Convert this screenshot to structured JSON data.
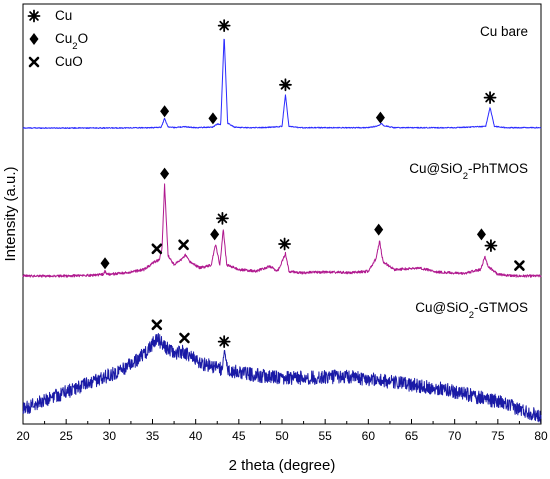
{
  "chart_data": {
    "type": "line",
    "title": "",
    "xlabel": "2 theta (degree)",
    "ylabel": "Intensity (a.u.)",
    "xlim": [
      20,
      80
    ],
    "xticks": [
      20,
      25,
      30,
      35,
      40,
      45,
      50,
      55,
      60,
      65,
      70,
      75,
      80
    ],
    "yticks_shown": false,
    "grid": false,
    "legend": {
      "placement": "top-left",
      "items": [
        {
          "symbol": "asterisk",
          "label_parts": [
            [
              "Cu",
              ""
            ]
          ]
        },
        {
          "symbol": "diamond",
          "label_parts": [
            [
              "Cu",
              ""
            ],
            [
              "2",
              "sub"
            ],
            [
              "O",
              ""
            ]
          ]
        },
        {
          "symbol": "cross",
          "label_parts": [
            [
              "CuO",
              ""
            ]
          ]
        }
      ]
    },
    "series": [
      {
        "name": "Cu bare",
        "label_parts": [
          [
            "Cu bare",
            ""
          ]
        ],
        "color": "#2b2bff",
        "baseline": 0.9,
        "noise": 0.03,
        "points": [
          [
            20,
            0.9
          ],
          [
            25,
            0.9
          ],
          [
            30,
            0.9
          ],
          [
            35,
            0.92
          ],
          [
            36,
            0.95
          ],
          [
            36.4,
            1.5
          ],
          [
            36.8,
            0.97
          ],
          [
            37.5,
            0.93
          ],
          [
            38.8,
            0.98
          ],
          [
            40,
            0.92
          ],
          [
            42,
            0.96
          ],
          [
            42.5,
            1.15
          ],
          [
            42.9,
            1.1
          ],
          [
            43.3,
            6.7
          ],
          [
            43.7,
            1.2
          ],
          [
            44.5,
            0.95
          ],
          [
            46,
            0.92
          ],
          [
            48,
            0.93
          ],
          [
            50,
            1.0
          ],
          [
            50.4,
            3.0
          ],
          [
            50.8,
            1.0
          ],
          [
            52,
            0.92
          ],
          [
            55,
            0.92
          ],
          [
            60,
            0.92
          ],
          [
            61.2,
            1.05
          ],
          [
            61.5,
            1.2
          ],
          [
            61.8,
            1.05
          ],
          [
            63,
            0.92
          ],
          [
            70,
            0.92
          ],
          [
            73.6,
            1.0
          ],
          [
            74.1,
            2.2
          ],
          [
            74.6,
            1.0
          ],
          [
            76,
            0.92
          ],
          [
            80,
            0.92
          ]
        ],
        "markers": [
          {
            "symbol": "diamond",
            "x": 36.4,
            "y": 1.95
          },
          {
            "symbol": "diamond",
            "x": 42.0,
            "y": 1.5
          },
          {
            "symbol": "asterisk",
            "x": 43.3,
            "y": 7.3
          },
          {
            "symbol": "asterisk",
            "x": 50.4,
            "y": 3.6
          },
          {
            "symbol": "diamond",
            "x": 61.4,
            "y": 1.55
          },
          {
            "symbol": "asterisk",
            "x": 74.1,
            "y": 2.8
          }
        ]
      },
      {
        "name": "Cu@SiO2-PhTMOS",
        "label_parts": [
          [
            "Cu@SiO",
            ""
          ],
          [
            "2",
            "sub"
          ],
          [
            "-PhTMOS",
            ""
          ]
        ],
        "color": "#b0198f",
        "baseline": 0.3,
        "noise": 0.08,
        "points": [
          [
            20,
            0.3
          ],
          [
            25,
            0.3
          ],
          [
            28,
            0.35
          ],
          [
            29.3,
            0.4
          ],
          [
            29.5,
            0.6
          ],
          [
            29.7,
            0.4
          ],
          [
            32,
            0.5
          ],
          [
            34,
            0.7
          ],
          [
            35.3,
            1.2
          ],
          [
            35.8,
            1.3
          ],
          [
            36.1,
            2.0
          ],
          [
            36.4,
            6.0
          ],
          [
            36.8,
            1.6
          ],
          [
            37.5,
            1.0
          ],
          [
            38.5,
            1.4
          ],
          [
            38.8,
            1.6
          ],
          [
            39.3,
            1.2
          ],
          [
            40.5,
            0.8
          ],
          [
            41.8,
            1.0
          ],
          [
            42.3,
            2.3
          ],
          [
            42.8,
            1.0
          ],
          [
            43.2,
            3.2
          ],
          [
            43.6,
            1.0
          ],
          [
            45,
            0.7
          ],
          [
            47,
            0.6
          ],
          [
            48.6,
            0.9
          ],
          [
            49.5,
            0.6
          ],
          [
            50.4,
            1.7
          ],
          [
            50.8,
            0.6
          ],
          [
            52,
            0.5
          ],
          [
            55,
            0.55
          ],
          [
            58,
            0.5
          ],
          [
            60,
            0.6
          ],
          [
            60.9,
            1.4
          ],
          [
            61.3,
            2.5
          ],
          [
            61.7,
            1.2
          ],
          [
            63,
            0.7
          ],
          [
            66,
            0.8
          ],
          [
            68,
            0.55
          ],
          [
            71,
            0.45
          ],
          [
            73,
            0.7
          ],
          [
            73.5,
            1.5
          ],
          [
            73.9,
            0.9
          ],
          [
            75,
            0.4
          ],
          [
            77,
            0.3
          ],
          [
            80,
            0.3
          ]
        ],
        "markers": [
          {
            "symbol": "diamond",
            "x": 29.5,
            "y": 1.1
          },
          {
            "symbol": "cross",
            "x": 35.5,
            "y": 2.0
          },
          {
            "symbol": "diamond",
            "x": 36.4,
            "y": 6.7
          },
          {
            "symbol": "cross",
            "x": 38.6,
            "y": 2.25
          },
          {
            "symbol": "diamond",
            "x": 42.2,
            "y": 2.9
          },
          {
            "symbol": "asterisk",
            "x": 43.1,
            "y": 3.9
          },
          {
            "symbol": "asterisk",
            "x": 50.3,
            "y": 2.3
          },
          {
            "symbol": "diamond",
            "x": 61.2,
            "y": 3.2
          },
          {
            "symbol": "diamond",
            "x": 73.1,
            "y": 2.9
          },
          {
            "symbol": "asterisk",
            "x": 74.2,
            "y": 2.2
          },
          {
            "symbol": "cross",
            "x": 77.5,
            "y": 0.95
          }
        ]
      },
      {
        "name": "Cu@SiO2-GTMOS",
        "label_parts": [
          [
            "Cu@SiO",
            ""
          ],
          [
            "2",
            "sub"
          ],
          [
            "-GTMOS",
            ""
          ]
        ],
        "color": "#1a1aa6",
        "baseline": 0.35,
        "noise": 0.16,
        "points": [
          [
            20,
            0.6
          ],
          [
            22,
            0.95
          ],
          [
            25,
            1.35
          ],
          [
            28,
            1.75
          ],
          [
            31,
            2.2
          ],
          [
            33,
            2.6
          ],
          [
            34.5,
            3.1
          ],
          [
            35.5,
            3.6
          ],
          [
            36.5,
            3.2
          ],
          [
            37.5,
            2.95
          ],
          [
            38.5,
            3.05
          ],
          [
            39.5,
            2.8
          ],
          [
            41,
            2.5
          ],
          [
            43,
            2.3
          ],
          [
            43.3,
            3.1
          ],
          [
            43.6,
            2.3
          ],
          [
            45,
            2.15
          ],
          [
            48,
            2.0
          ],
          [
            51,
            1.95
          ],
          [
            54,
            1.95
          ],
          [
            57,
            2.0
          ],
          [
            60,
            1.9
          ],
          [
            63,
            1.75
          ],
          [
            66,
            1.6
          ],
          [
            69,
            1.45
          ],
          [
            72,
            1.2
          ],
          [
            75,
            0.95
          ],
          [
            77,
            0.7
          ],
          [
            79,
            0.45
          ],
          [
            80,
            0.35
          ]
        ],
        "markers": [
          {
            "symbol": "cross",
            "x": 35.5,
            "y": 4.15
          },
          {
            "symbol": "cross",
            "x": 38.7,
            "y": 3.6
          },
          {
            "symbol": "asterisk",
            "x": 43.3,
            "y": 3.45
          }
        ]
      }
    ]
  }
}
